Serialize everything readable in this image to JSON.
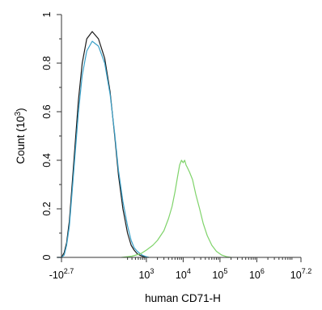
{
  "chart_data": {
    "type": "line",
    "title": "",
    "xlabel": "human CD71-H",
    "ylabel": "Count (10",
    "ylabel_exponent": "3",
    "ylabel_suffix": ")",
    "x_scale": "logicle",
    "ylim": [
      0,
      1
    ],
    "grid": false,
    "legend": "none",
    "y_ticks": [
      {
        "value": 0,
        "label": "0"
      },
      {
        "value": 0.2,
        "label": "0.2"
      },
      {
        "value": 0.4,
        "label": "0.4"
      },
      {
        "value": 0.6,
        "label": "0.6"
      },
      {
        "value": 0.8,
        "label": "0.8"
      },
      {
        "value": 1,
        "label": "1"
      }
    ],
    "x_ticks": [
      {
        "value": -500,
        "base": "-10",
        "exp": "2.7"
      },
      {
        "value": 1000,
        "base": "10",
        "exp": "3"
      },
      {
        "value": 10000,
        "base": "10",
        "exp": "4"
      },
      {
        "value": 100000,
        "base": "10",
        "exp": "5"
      },
      {
        "value": 1000000,
        "base": "10",
        "exp": "6"
      },
      {
        "value": 15848932,
        "base": "10",
        "exp": "7.2"
      }
    ],
    "series": [
      {
        "color": "#1a1a1a",
        "x": [
          -650,
          -500,
          -420,
          -360,
          -300,
          -250,
          -200,
          -160,
          -120,
          -80,
          -40,
          0,
          40,
          80,
          120,
          160,
          220,
          300,
          380,
          460,
          560,
          680,
          800,
          950,
          1150
        ],
        "y": [
          0.0,
          0.0,
          0.02,
          0.06,
          0.15,
          0.3,
          0.48,
          0.65,
          0.8,
          0.9,
          0.93,
          0.9,
          0.82,
          0.68,
          0.5,
          0.34,
          0.2,
          0.1,
          0.05,
          0.03,
          0.015,
          0.008,
          0.004,
          0.002,
          0.0
        ]
      },
      {
        "color": "#3aa0c8",
        "x": [
          -650,
          -500,
          -420,
          -360,
          -300,
          -250,
          -200,
          -160,
          -120,
          -80,
          -40,
          0,
          40,
          80,
          120,
          160,
          220,
          300,
          380,
          460,
          560,
          680,
          800,
          950,
          1150
        ],
        "y": [
          0.0,
          0.0,
          0.01,
          0.05,
          0.13,
          0.27,
          0.44,
          0.6,
          0.75,
          0.85,
          0.89,
          0.87,
          0.8,
          0.67,
          0.51,
          0.36,
          0.23,
          0.13,
          0.07,
          0.04,
          0.025,
          0.015,
          0.008,
          0.004,
          0.0
        ]
      },
      {
        "color": "#7fd36a",
        "x": [
          200,
          400,
          700,
          1000,
          1500,
          2000,
          3000,
          4000,
          5000,
          6000,
          7000,
          8000,
          9000,
          10000,
          11000,
          12000,
          13000,
          15000,
          18000,
          22000,
          28000,
          35000,
          45000,
          60000,
          80000,
          110000,
          150000,
          200000
        ],
        "y": [
          0.0,
          0.005,
          0.015,
          0.03,
          0.05,
          0.07,
          0.11,
          0.16,
          0.21,
          0.27,
          0.33,
          0.38,
          0.4,
          0.39,
          0.4,
          0.38,
          0.37,
          0.35,
          0.32,
          0.26,
          0.2,
          0.14,
          0.09,
          0.05,
          0.025,
          0.01,
          0.003,
          0.0
        ]
      }
    ]
  }
}
